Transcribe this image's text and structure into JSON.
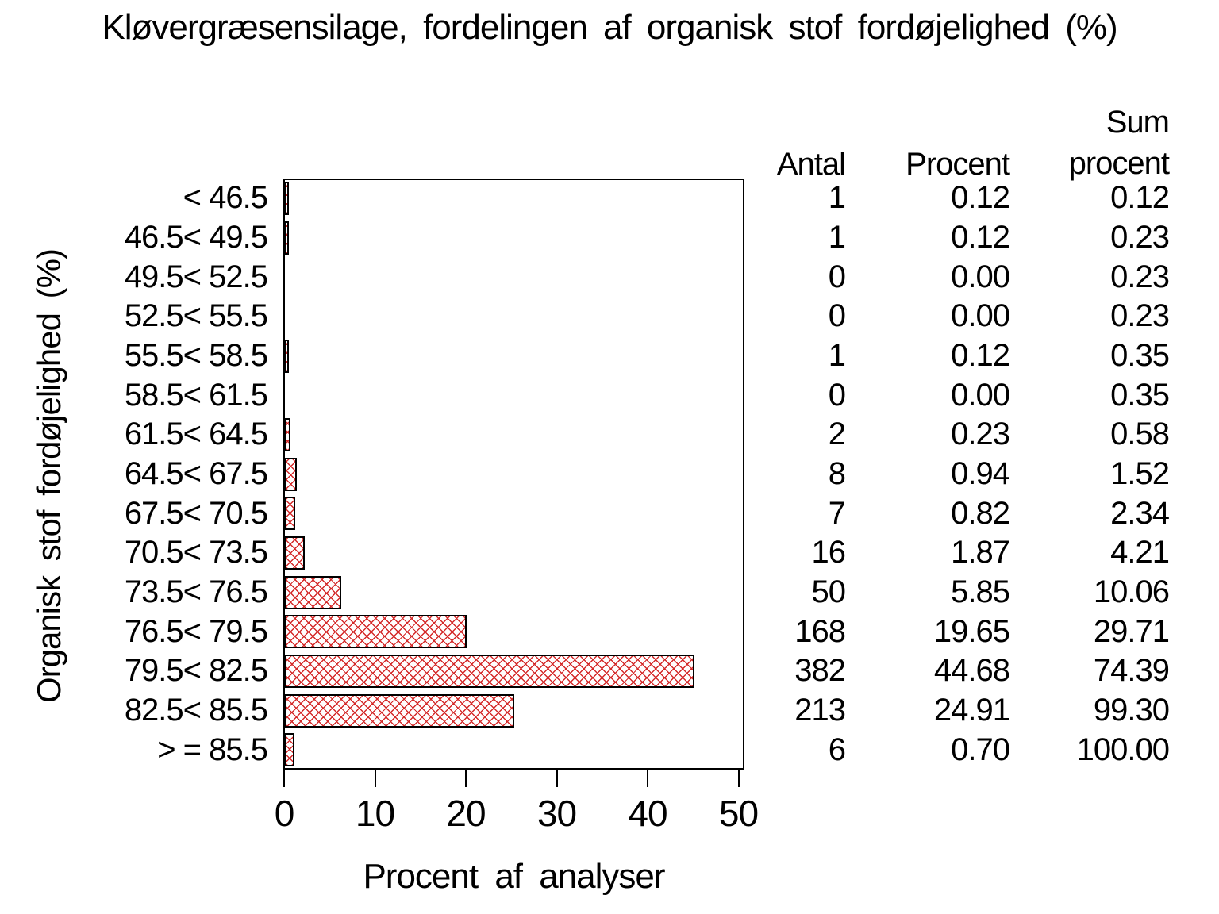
{
  "title": "Kløvergræsensilage,  fordelingen  af  organisk  stof  fordøjelighed  (%)",
  "y_axis_label": "Organisk  stof  fordøjelighed  (%)",
  "x_axis_label": "Procent  af  analyser",
  "table_headers": {
    "antal": "Antal",
    "procent": "Procent",
    "sum_line1": "Sum",
    "sum_line2": "procent"
  },
  "colors": {
    "bar_hatch_red": "#d42a2a",
    "bar_outline": "#000000",
    "text": "#000000",
    "background": "#ffffff"
  },
  "chart_data": {
    "type": "bar",
    "orientation": "horizontal",
    "title": "Kløvergræsensilage, fordelingen af organisk stof fordøjelighed (%)",
    "xlabel": "Procent af analyser",
    "ylabel": "Organisk stof fordøjelighed (%)",
    "x_ticks": [
      0,
      10,
      20,
      30,
      40,
      50
    ],
    "xlim": [
      0,
      50.7
    ],
    "grid": false,
    "legend": "none",
    "bar_pattern": "red diagonal crosshatch with black outline",
    "categories": [
      "< 46.5",
      "46.5< 49.5",
      "49.5< 52.5",
      "52.5< 55.5",
      "55.5< 58.5",
      "58.5< 61.5",
      "61.5< 64.5",
      "64.5< 67.5",
      "67.5< 70.5",
      "70.5< 73.5",
      "73.5< 76.5",
      "76.5< 79.5",
      "79.5< 82.5",
      "82.5< 85.5",
      "> = 85.5"
    ],
    "series": [
      {
        "name": "Antal",
        "values": [
          1,
          1,
          0,
          0,
          1,
          0,
          2,
          8,
          7,
          16,
          50,
          168,
          382,
          213,
          6
        ]
      },
      {
        "name": "Procent",
        "values": [
          0.12,
          0.12,
          0.0,
          0.0,
          0.12,
          0.0,
          0.23,
          0.94,
          0.82,
          1.87,
          5.85,
          19.65,
          44.68,
          24.91,
          0.7
        ]
      },
      {
        "name": "Sum procent",
        "values": [
          0.12,
          0.23,
          0.23,
          0.23,
          0.35,
          0.35,
          0.58,
          1.52,
          2.34,
          4.21,
          10.06,
          29.71,
          74.39,
          99.3,
          100.0
        ]
      }
    ],
    "rows": [
      {
        "label": "< 46.5",
        "antal": "1",
        "procent": "0.12",
        "sum": "0.12"
      },
      {
        "label": "46.5< 49.5",
        "antal": "1",
        "procent": "0.12",
        "sum": "0.23"
      },
      {
        "label": "49.5< 52.5",
        "antal": "0",
        "procent": "0.00",
        "sum": "0.23"
      },
      {
        "label": "52.5< 55.5",
        "antal": "0",
        "procent": "0.00",
        "sum": "0.23"
      },
      {
        "label": "55.5< 58.5",
        "antal": "1",
        "procent": "0.12",
        "sum": "0.35"
      },
      {
        "label": "58.5< 61.5",
        "antal": "0",
        "procent": "0.00",
        "sum": "0.35"
      },
      {
        "label": "61.5< 64.5",
        "antal": "2",
        "procent": "0.23",
        "sum": "0.58"
      },
      {
        "label": "64.5< 67.5",
        "antal": "8",
        "procent": "0.94",
        "sum": "1.52"
      },
      {
        "label": "67.5< 70.5",
        "antal": "7",
        "procent": "0.82",
        "sum": "2.34"
      },
      {
        "label": "70.5< 73.5",
        "antal": "16",
        "procent": "1.87",
        "sum": "4.21"
      },
      {
        "label": "73.5< 76.5",
        "antal": "50",
        "procent": "5.85",
        "sum": "10.06"
      },
      {
        "label": "76.5< 79.5",
        "antal": "168",
        "procent": "19.65",
        "sum": "29.71"
      },
      {
        "label": "79.5< 82.5",
        "antal": "382",
        "procent": "44.68",
        "sum": "74.39"
      },
      {
        "label": "82.5< 85.5",
        "antal": "213",
        "procent": "24.91",
        "sum": "99.30"
      },
      {
        "label": "> = 85.5",
        "antal": "6",
        "procent": "0.70",
        "sum": "100.00"
      }
    ]
  }
}
